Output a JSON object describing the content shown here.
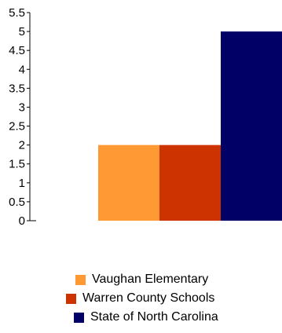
{
  "chart_data": {
    "type": "bar",
    "title": "",
    "xlabel": "",
    "ylabel": "",
    "ylim": [
      0,
      5.5
    ],
    "yticks": [
      "0",
      "0.5",
      "1",
      "1.5",
      "2",
      "2.5",
      "3",
      "3.5",
      "4",
      "4.5",
      "5",
      "5.5"
    ],
    "grid": false,
    "legend_position": "bottom",
    "series": [
      {
        "name": "Vaughan Elementary",
        "value": 2,
        "color": "#FF9933"
      },
      {
        "name": "Warren County Schools",
        "value": 2,
        "color": "#CC3300"
      },
      {
        "name": "State of North Carolina",
        "value": 5,
        "color": "#000066"
      }
    ]
  }
}
